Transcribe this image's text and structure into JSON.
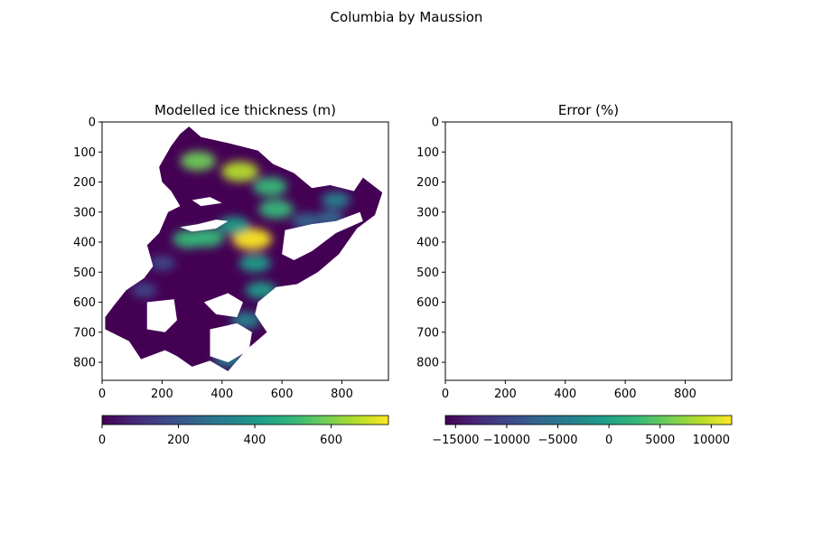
{
  "figure": {
    "suptitle": "Columbia by Maussion"
  },
  "colors": {
    "viridis": [
      "#440154",
      "#482878",
      "#3e4989",
      "#31688e",
      "#26828e",
      "#1f9e89",
      "#35b779",
      "#6ece58",
      "#b5de2b",
      "#fde725"
    ]
  },
  "chart_data": [
    {
      "type": "heatmap",
      "title": "Modelled ice thickness (m)",
      "colormap": "viridis",
      "xlim": [
        0,
        955
      ],
      "ylim": [
        860,
        0
      ],
      "x_ticks": [
        0,
        200,
        400,
        600,
        800
      ],
      "y_ticks": [
        0,
        100,
        200,
        300,
        400,
        500,
        600,
        700,
        800
      ],
      "colorbar": {
        "orientation": "horizontal",
        "range": [
          0,
          750
        ],
        "ticks": [
          0,
          200,
          400,
          600
        ]
      },
      "glacier_outline": [
        [
          290,
          15
        ],
        [
          330,
          50
        ],
        [
          420,
          70
        ],
        [
          520,
          95
        ],
        [
          570,
          140
        ],
        [
          640,
          170
        ],
        [
          700,
          220
        ],
        [
          760,
          210
        ],
        [
          840,
          230
        ],
        [
          870,
          185
        ],
        [
          935,
          235
        ],
        [
          910,
          310
        ],
        [
          850,
          355
        ],
        [
          790,
          440
        ],
        [
          720,
          500
        ],
        [
          650,
          540
        ],
        [
          580,
          550
        ],
        [
          520,
          600
        ],
        [
          510,
          640
        ],
        [
          550,
          700
        ],
        [
          480,
          760
        ],
        [
          420,
          830
        ],
        [
          360,
          795
        ],
        [
          300,
          815
        ],
        [
          250,
          780
        ],
        [
          210,
          760
        ],
        [
          130,
          790
        ],
        [
          90,
          730
        ],
        [
          10,
          690
        ],
        [
          10,
          650
        ],
        [
          40,
          610
        ],
        [
          80,
          560
        ],
        [
          140,
          520
        ],
        [
          170,
          480
        ],
        [
          150,
          410
        ],
        [
          190,
          370
        ],
        [
          220,
          300
        ],
        [
          260,
          280
        ],
        [
          230,
          230
        ],
        [
          200,
          200
        ],
        [
          190,
          150
        ],
        [
          230,
          80
        ],
        [
          260,
          40
        ]
      ],
      "thickness_blobs": [
        {
          "x": 320,
          "y": 130,
          "value": 560
        },
        {
          "x": 460,
          "y": 165,
          "value": 640
        },
        {
          "x": 560,
          "y": 215,
          "value": 520
        },
        {
          "x": 580,
          "y": 290,
          "value": 540
        },
        {
          "x": 500,
          "y": 390,
          "value": 740
        },
        {
          "x": 350,
          "y": 385,
          "value": 520
        },
        {
          "x": 290,
          "y": 390,
          "value": 460
        },
        {
          "x": 440,
          "y": 345,
          "value": 430
        },
        {
          "x": 780,
          "y": 260,
          "value": 300
        },
        {
          "x": 760,
          "y": 320,
          "value": 260
        },
        {
          "x": 680,
          "y": 330,
          "value": 260
        },
        {
          "x": 510,
          "y": 470,
          "value": 420
        },
        {
          "x": 530,
          "y": 560,
          "value": 380
        },
        {
          "x": 480,
          "y": 660,
          "value": 360
        },
        {
          "x": 420,
          "y": 790,
          "value": 320
        },
        {
          "x": 200,
          "y": 470,
          "value": 200
        },
        {
          "x": 140,
          "y": 560,
          "value": 150
        }
      ],
      "fjord_gaps": [
        [
          [
            610,
            360
          ],
          [
            700,
            340
          ],
          [
            780,
            330
          ],
          [
            860,
            300
          ],
          [
            870,
            330
          ],
          [
            780,
            370
          ],
          [
            700,
            430
          ],
          [
            640,
            460
          ],
          [
            600,
            440
          ]
        ],
        [
          [
            260,
            350
          ],
          [
            320,
            340
          ],
          [
            380,
            325
          ],
          [
            420,
            330
          ],
          [
            380,
            355
          ],
          [
            300,
            365
          ]
        ],
        [
          [
            300,
            260
          ],
          [
            360,
            250
          ],
          [
            400,
            270
          ],
          [
            330,
            280
          ]
        ],
        [
          [
            150,
            600
          ],
          [
            240,
            590
          ],
          [
            250,
            660
          ],
          [
            210,
            700
          ],
          [
            150,
            690
          ]
        ],
        [
          [
            340,
            600
          ],
          [
            420,
            570
          ],
          [
            470,
            600
          ],
          [
            450,
            650
          ],
          [
            380,
            640
          ]
        ],
        [
          [
            360,
            690
          ],
          [
            450,
            670
          ],
          [
            500,
            700
          ],
          [
            490,
            760
          ],
          [
            420,
            800
          ],
          [
            360,
            780
          ]
        ]
      ]
    },
    {
      "type": "heatmap",
      "title": "Error (%)",
      "colormap": "viridis",
      "xlim": [
        0,
        955
      ],
      "ylim": [
        860,
        0
      ],
      "x_ticks": [
        0,
        200,
        400,
        600,
        800
      ],
      "y_ticks": [
        0,
        100,
        200,
        300,
        400,
        500,
        600,
        700,
        800
      ],
      "colorbar": {
        "orientation": "horizontal",
        "range": [
          -16000,
          12000
        ],
        "ticks": [
          -15000,
          -10000,
          -5000,
          0,
          5000,
          10000
        ]
      }
    }
  ]
}
